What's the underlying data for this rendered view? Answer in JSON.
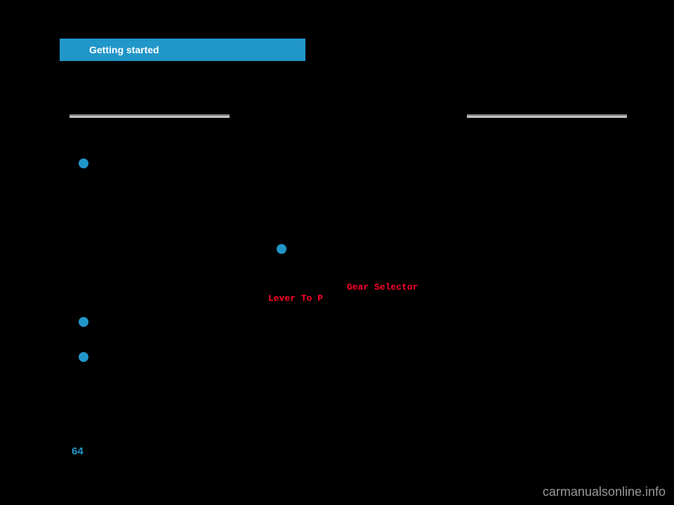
{
  "header": {
    "title": "Getting started"
  },
  "redText": {
    "line1": "Gear Selector",
    "line2": "Lever To P"
  },
  "pageNumber": "64",
  "watermark": "carmanualsonline.info",
  "colors": {
    "headerBg": "#2196c9",
    "headerText": "#ffffff",
    "background": "#000000",
    "redText": "#ff0028",
    "bulletDot": "#2196c9",
    "pageNum": "#2196c9",
    "watermark": "#989898"
  }
}
